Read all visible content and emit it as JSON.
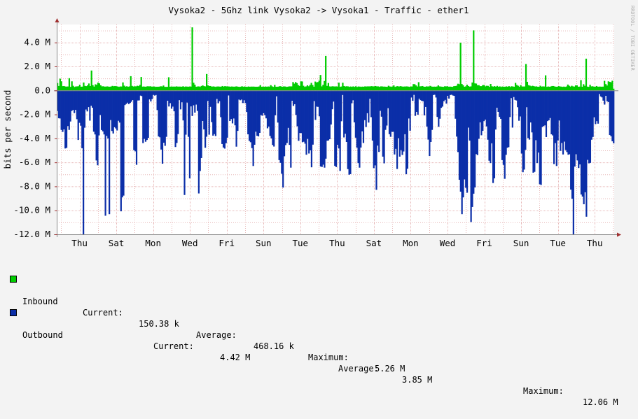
{
  "colors": {
    "background": "#f3f3f3",
    "canvas": "#ffffff",
    "grid": "#e7b8b8",
    "inbound": "#00cc00",
    "outbound": "#0b2ea8",
    "axis": "#888888"
  },
  "chart_data": {
    "type": "area",
    "title": "Vysoka2 - 5Ghz link Vysoka2 -> Vysoka1 - Traffic - ether1",
    "ylabel": "bits per second",
    "watermark": "RRDTOOL / TOBI OETIKER",
    "ylim": [
      -12,
      5.5
    ],
    "y_unit": "M",
    "y_ticks": [
      "4.0 M",
      "2.0 M",
      "0.0",
      "-2.0 M",
      "-4.0 M",
      "-6.0 M",
      "-8.0 M",
      "-10.0 M",
      "-12.0 M"
    ],
    "y_tick_values": [
      4,
      2,
      0,
      -2,
      -4,
      -6,
      -8,
      -10,
      -12
    ],
    "x_ticks": [
      "Thu",
      "Sat",
      "Mon",
      "Wed",
      "Fri",
      "Sun",
      "Tue",
      "Thu",
      "Sat",
      "Mon",
      "Wed",
      "Fri",
      "Sun",
      "Tue",
      "Thu"
    ],
    "grid": true,
    "series": [
      {
        "name": "Inbound",
        "color": "#00cc00",
        "values": [
          0.62,
          0.37,
          0.98,
          0.76,
          0.36,
          0.37,
          0.33,
          0.32,
          0.33,
          1.02,
          0.3,
          0.76,
          0.39,
          0.29,
          0.33,
          0.34,
          0.35,
          0.48,
          0.31,
          0.32,
          0.66,
          0.38,
          0.36,
          0.42,
          0.58,
          0.37,
          1.66,
          0.44,
          0.32,
          0.51,
          0.47,
          0.65,
          0.59,
          0.43,
          0.34,
          0.35,
          0.32,
          0.32,
          0.34,
          0.32,
          0.31,
          0.33,
          0.38,
          0.35,
          0.37,
          0.35,
          0.33,
          0.3,
          0.33,
          0.33,
          0.67,
          0.4,
          0.32,
          0.35,
          0.31,
          0.34,
          1.19,
          0.38,
          0.33,
          0.35,
          0.34,
          0.39,
          0.36,
          0.46,
          1.12,
          0.32,
          0.33,
          0.31,
          0.33,
          0.35,
          0.34,
          0.35,
          0.32,
          0.32,
          0.33,
          0.3,
          0.31,
          0.31,
          0.32,
          0.35,
          0.33,
          0.41,
          0.3,
          0.3,
          0.3,
          1.1,
          0.31,
          0.33,
          0.32,
          0.32,
          0.32,
          0.34,
          0.32,
          0.32,
          0.32,
          0.31,
          0.35,
          0.3,
          0.33,
          0.32,
          0.31,
          0.33,
          0.32,
          5.26,
          0.64,
          0.48,
          0.31,
          0.33,
          0.34,
          0.3,
          0.37,
          0.42,
          0.36,
          0.34,
          1.37,
          0.42,
          0.37,
          0.37,
          0.31,
          0.34,
          0.32,
          0.3,
          0.33,
          0.33,
          0.32,
          0.31,
          0.37,
          0.32,
          0.36,
          0.34,
          0.34,
          0.33,
          0.31,
          0.33,
          0.32,
          0.31,
          0.33,
          0.34,
          0.31,
          0.3,
          0.31,
          0.35,
          0.31,
          0.33,
          0.31,
          0.3,
          0.33,
          0.31,
          0.32,
          0.32,
          0.32,
          0.31,
          0.31,
          0.31,
          0.33,
          0.44,
          0.31,
          0.32,
          0.31,
          0.33,
          0.31,
          0.33,
          0.32,
          0.44,
          0.34,
          0.3,
          0.46,
          0.31,
          0.31,
          0.32,
          0.36,
          0.33,
          0.31,
          0.34,
          0.33,
          0.3,
          0.31,
          0.34,
          0.34,
          0.34,
          0.7,
          0.57,
          0.7,
          0.61,
          0.44,
          0.38,
          0.76,
          0.75,
          0.39,
          0.3,
          0.34,
          0.43,
          0.35,
          0.46,
          0.63,
          0.45,
          0.31,
          0.74,
          0.67,
          0.7,
          0.82,
          1.29,
          0.34,
          0.47,
          0.79,
          2.88,
          0.38,
          0.62,
          0.34,
          0.32,
          0.35,
          0.34,
          0.33,
          0.34,
          0.32,
          0.65,
          0.3,
          0.33,
          0.64,
          0.37,
          0.33,
          0.35,
          0.34,
          0.3,
          0.33,
          0.3,
          0.34,
          0.3,
          0.35,
          0.29,
          0.33,
          0.32,
          0.3,
          0.32,
          0.31,
          0.34,
          0.33,
          0.34,
          0.34,
          0.34,
          0.36,
          0.34,
          0.34,
          0.37,
          0.34,
          0.34,
          0.3,
          0.34,
          0.34,
          0.32,
          0.32,
          0.31,
          0.3,
          0.39,
          0.33,
          0.3,
          0.34,
          0.42,
          0.3,
          0.34,
          0.36,
          0.32,
          0.36,
          0.34,
          0.31,
          0.33,
          0.33,
          0.34,
          0.32,
          0.3,
          0.33,
          0.33,
          0.53,
          0.52,
          0.42,
          0.33,
          0.69,
          0.34,
          0.35,
          0.37,
          0.31,
          0.31,
          0.34,
          0.33,
          0.34,
          0.38,
          0.32,
          0.31,
          0.32,
          0.31,
          0.33,
          0.42,
          0.34,
          0.32,
          0.31,
          0.3,
          0.35,
          0.34,
          0.35,
          0.31,
          0.32,
          0.31,
          0.3,
          0.36,
          0.37,
          0.39,
          0.56,
          0.52,
          3.98,
          0.54,
          0.43,
          0.31,
          0.34,
          0.48,
          0.37,
          0.32,
          0.34,
          0.66,
          5.01,
          0.59,
          0.57,
          0.43,
          0.44,
          0.36,
          0.36,
          0.44,
          0.45,
          0.34,
          0.39,
          0.38,
          0.3,
          0.54,
          0.35,
          0.32,
          0.36,
          0.31,
          0.38,
          0.31,
          0.34,
          0.29,
          0.33,
          0.31,
          0.31,
          0.34,
          0.31,
          0.36,
          0.29,
          0.35,
          0.33,
          0.31,
          0.63,
          0.46,
          0.39,
          0.31,
          0.44,
          0.33,
          0.33,
          0.33,
          2.2,
          0.72,
          0.44,
          0.4,
          0.35,
          0.39,
          0.36,
          0.33,
          0.34,
          0.31,
          0.31,
          0.39,
          0.32,
          0.34,
          0.33,
          1.26,
          0.3,
          0.33,
          0.31,
          0.33,
          0.37,
          0.37,
          0.33,
          0.31,
          0.31,
          0.36,
          0.33,
          0.32,
          0.3,
          0.32,
          0.3,
          0.33,
          0.49,
          0.39,
          0.32,
          0.39,
          0.34,
          0.32,
          0.42,
          0.42,
          0.31,
          0.32,
          0.86,
          0.31,
          0.52,
          0.39,
          2.65,
          0.32,
          0.3,
          0.47,
          0.34,
          0.35,
          0.31,
          0.31,
          0.37,
          0.31,
          0.32,
          0.32,
          0.31,
          0.32,
          0.8,
          0.53,
          0.41,
          0.76,
          0.72,
          0.68,
          0.81,
          0.15
        ]
      },
      {
        "name": "Outbound",
        "color": "#0b2ea8",
        "values": [
          -1.72,
          -2.32,
          -2.34,
          -3.29,
          -3.46,
          -3.25,
          -4.84,
          -4.79,
          -2.97,
          -3.29,
          -2.59,
          -1.71,
          -1.62,
          -1.89,
          -1.62,
          -2.4,
          -4.13,
          -2.7,
          -2.94,
          -4.82,
          -12.0,
          -3.11,
          -1.59,
          -1.75,
          -1.39,
          -2.52,
          -1.28,
          -1.44,
          -3.44,
          -3.67,
          -5.84,
          -6.24,
          -3.75,
          -2.05,
          -3.3,
          -3.41,
          -3.67,
          -10.45,
          -3.79,
          -4.0,
          -10.32,
          -2.47,
          -3.38,
          -3.59,
          -3.07,
          -3.17,
          -3.34,
          -2.53,
          -2.68,
          -10.08,
          -8.92,
          -8.77,
          -1.22,
          -1.13,
          -1.02,
          -1.14,
          -1.04,
          -0.94,
          -0.8,
          -4.98,
          -5.08,
          -6.2,
          -0.84,
          -0.83,
          -0.43,
          -0.47,
          -4.39,
          -4.04,
          -4.28,
          -4.13,
          -3.95,
          -0.75,
          -0.92,
          -0.72,
          -0.37,
          -0.43,
          -0.38,
          -1.64,
          -3.84,
          -3.91,
          -4.93,
          -6.11,
          -4.36,
          -4.62,
          -3.87,
          -0.86,
          -1.34,
          -1.06,
          -1.52,
          -1.35,
          -1.74,
          -4.72,
          -4.38,
          -3.64,
          -0.81,
          -1.58,
          -0.99,
          -2.5,
          -8.72,
          -3.69,
          -1.01,
          -3.87,
          -7.33,
          -1.33,
          -2.13,
          -1.24,
          -1.85,
          -1.18,
          -1.71,
          -8.59,
          -6.72,
          -5.64,
          -2.55,
          -3.25,
          -4.78,
          -3.86,
          -0.88,
          -3.69,
          -1.37,
          -2.64,
          -3.77,
          -3.64,
          -3.8,
          -0.71,
          -1.07,
          -0.9,
          -2.23,
          -4.47,
          -4.76,
          -4.85,
          -4.4,
          -3.94,
          -0.42,
          -2.55,
          -2.39,
          -2.75,
          -2.34,
          -2.91,
          -4.69,
          -3.37,
          -0.76,
          -0.82,
          -0.76,
          -1.05,
          -0.82,
          -1.06,
          -1.8,
          -3.66,
          -4.21,
          -4.32,
          -4.81,
          -6.3,
          -4.53,
          -3.44,
          -3.78,
          -3.83,
          -3.54,
          -2.05,
          -2.11,
          -1.9,
          -2.06,
          -2.33,
          -3.16,
          -3.01,
          -3.79,
          -3.99,
          -4.55,
          -4.68,
          -2.07,
          -0.49,
          -2.68,
          -5.81,
          -6.04,
          -6.95,
          -8.1,
          -5.49,
          -4.56,
          -4.38,
          -3.12,
          -4.54,
          -6.44,
          -0.87,
          -1.29,
          -1.15,
          -2.04,
          -2.99,
          -4.2,
          -3.55,
          -3.56,
          -4.32,
          -4.28,
          -4.44,
          -5.36,
          -4.04,
          -5.26,
          -5.0,
          -6.41,
          -4.52,
          -0.89,
          -2.46,
          -1.35,
          -1.37,
          -2.16,
          -6.34,
          -6.38,
          -6.19,
          -6.44,
          -5.69,
          -4.19,
          -4.17,
          -4.07,
          -2.84,
          -1.57,
          -0.93,
          -6.29,
          -6.39,
          -4.53,
          -4.84,
          -6.71,
          -2.57,
          -0.38,
          -3.92,
          -3.61,
          -4.3,
          -6.56,
          -7.03,
          -6.98,
          -1.07,
          -0.82,
          -2.66,
          -3.94,
          -4.77,
          -6.06,
          -6.44,
          -4.76,
          -3.41,
          -4.38,
          -2.48,
          -3.05,
          -1.9,
          -2.68,
          -0.69,
          -2.23,
          -4.18,
          -6.48,
          -6.25,
          -8.29,
          -4.6,
          -5.13,
          -1.7,
          -2.19,
          -5.52,
          -6.08,
          -3.29,
          -2.93,
          -1.48,
          -3.65,
          -3.87,
          -3.45,
          -3.45,
          -5.34,
          -4.87,
          -6.55,
          -3.98,
          -5.52,
          -4.98,
          -5.38,
          -5.09,
          -3.65,
          -6.99,
          -6.53,
          -2.34,
          -3.36,
          -0.59,
          -0.87,
          -0.37,
          -2.12,
          -1.79,
          -2.02,
          -0.69,
          -0.81,
          -0.87,
          -0.9,
          -2.08,
          -1.38,
          -3.01,
          -4.1,
          -5.47,
          -4.3,
          -3.29,
          -0.38,
          -0.36,
          -0.59,
          -2.21,
          -3.03,
          -2.36,
          -1.45,
          -1.35,
          -0.91,
          -0.79,
          -1.1,
          -0.45,
          -0.68,
          -0.38,
          -0.36,
          -0.42,
          -0.45,
          -2.36,
          -3.85,
          -5.14,
          -7.45,
          -8.44,
          -10.32,
          -8.92,
          -7.42,
          -8.12,
          -8.53,
          -3.1,
          -4.18,
          -10.97,
          -9.72,
          -8.61,
          -8.09,
          -5.31,
          -5.39,
          -4.03,
          -2.66,
          -3.74,
          -3.37,
          -2.56,
          -2.43,
          -3.0,
          -4.11,
          -5.86,
          -6.06,
          -4.41,
          -7.72,
          -7.33,
          -3.26,
          -1.44,
          -1.79,
          -2.21,
          -2.37,
          -5.81,
          -6.21,
          -7.37,
          -5.37,
          -4.78,
          -4.73,
          -2.22,
          -0.64,
          -3.1,
          -0.55,
          -0.79,
          -0.84,
          -1.4,
          -2.53,
          -2.17,
          -5.26,
          -6.82,
          -6.6,
          -4.95,
          -1.4,
          -3.97,
          -4.1,
          -2.67,
          -3.5,
          -6.86,
          -6.79,
          -4.15,
          -6.06,
          -5.18,
          -7.82,
          -7.88,
          -3.05,
          -2.97,
          -2.91,
          -3.89,
          -2.56,
          -2.49,
          -2.3,
          -3.66,
          -3.75,
          -6.14,
          -4.39,
          -6.3,
          -4.17,
          -2.51,
          -5.04,
          -4.38,
          -5.34,
          -4.27,
          -4.97,
          -5.14,
          -5.36,
          -5.32,
          -8.27,
          -9.03,
          -12.0,
          -6.35,
          -5.32,
          -5.84,
          -6.47,
          -6.17,
          -8.68,
          -8.85,
          -9.49,
          -8.49,
          -10.53,
          -5.79,
          -6.08,
          -6.04,
          -4.11,
          -3.88,
          -2.24,
          -2.81,
          -2.56,
          -2.77,
          -0.3,
          -0.5,
          -0.58,
          -0.85,
          -1.18,
          -0.45,
          -0.91,
          -0.97,
          -3.72,
          -3.82,
          -4.24,
          -4.41
        ]
      }
    ]
  },
  "legend": {
    "inbound": {
      "label": "Inbound",
      "current_label": "Current:",
      "current": "150.38 k",
      "average_label": "Average:",
      "average": "468.16 k",
      "maximum_label": "Maximum:",
      "maximum": "5.26 M"
    },
    "outbound": {
      "label": "Outbound",
      "current_label": "Current:",
      "current": "4.42 M",
      "average_label": "Average:",
      "average": "3.85 M",
      "maximum_label": "Maximum:",
      "maximum": "12.06 M"
    }
  }
}
